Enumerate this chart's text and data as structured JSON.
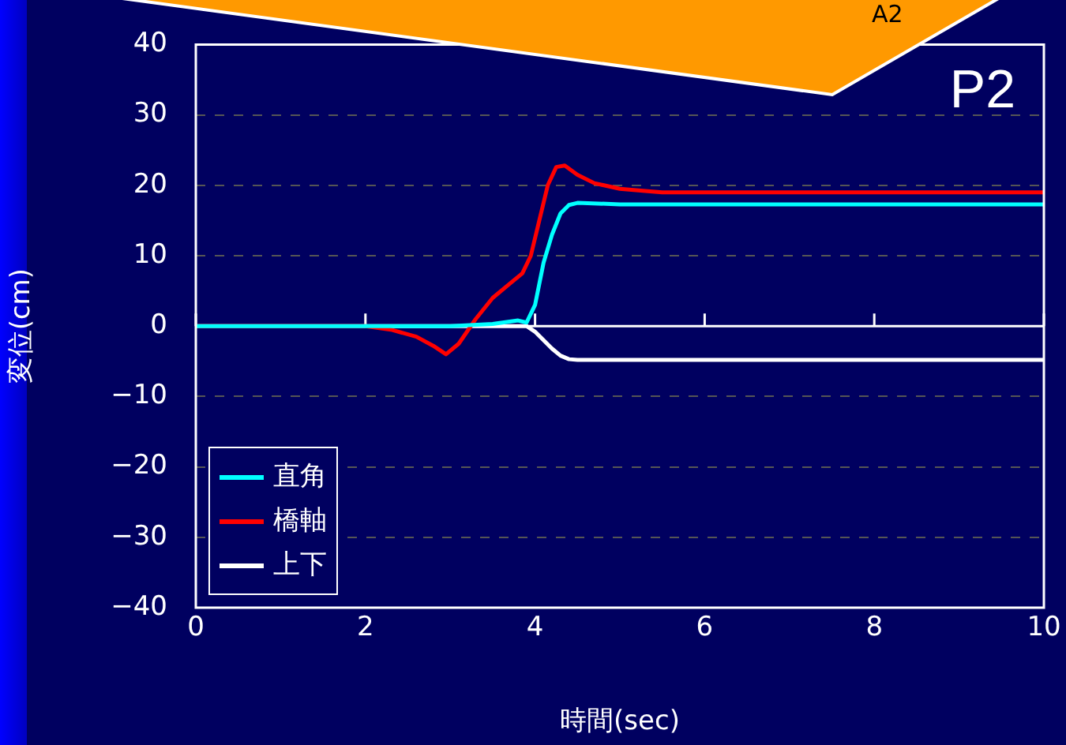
{
  "chart_data": {
    "type": "line",
    "xlabel": "時間(sec)",
    "ylabel": "変位(cm)",
    "annotations": [
      "P2",
      "A2"
    ],
    "xlim": [
      0,
      10
    ],
    "xticks": [
      0,
      2,
      4,
      6,
      8,
      10
    ],
    "ylim": [
      -40,
      40
    ],
    "yticks": [
      -40,
      -30,
      -20,
      -10,
      0,
      10,
      20,
      30,
      40
    ],
    "grid": "y",
    "legend": "bottom left",
    "marker": "none",
    "line_style": "solid",
    "ref_lines": [
      {
        "axis": "y",
        "value": 0,
        "color": "#ffffff"
      }
    ],
    "series": [
      {
        "name": "直角",
        "color": "#00ffff",
        "x": [
          0,
          1,
          2,
          3,
          3.5,
          3.8,
          3.9,
          4.0,
          4.1,
          4.2,
          4.3,
          4.4,
          4.5,
          5,
          10
        ],
        "values": [
          0,
          0,
          0,
          0,
          0.3,
          0.8,
          0.5,
          3,
          9,
          13,
          16,
          17.2,
          17.5,
          17.3,
          17.3
        ]
      },
      {
        "name": "橋軸",
        "color": "#ff0000",
        "x": [
          0,
          1,
          2,
          2.3,
          2.6,
          2.8,
          2.95,
          3.1,
          3.3,
          3.5,
          3.7,
          3.85,
          3.95,
          4.05,
          4.15,
          4.25,
          4.35,
          4.5,
          4.7,
          5,
          5.3,
          5.5,
          10
        ],
        "values": [
          0,
          0,
          0,
          -0.5,
          -1.5,
          -2.8,
          -4,
          -2.5,
          1,
          4,
          6,
          7.5,
          10,
          15,
          20,
          22.6,
          22.8,
          21.5,
          20.3,
          19.5,
          19.2,
          19,
          19
        ]
      },
      {
        "name": "上下",
        "color": "#ffffff",
        "x": [
          0,
          1,
          2,
          3,
          3.9,
          4.0,
          4.1,
          4.2,
          4.3,
          4.4,
          4.5,
          10
        ],
        "values": [
          0,
          0,
          0,
          0,
          0,
          -0.8,
          -2,
          -3.2,
          -4.2,
          -4.7,
          -4.8,
          -4.8
        ]
      }
    ]
  }
}
